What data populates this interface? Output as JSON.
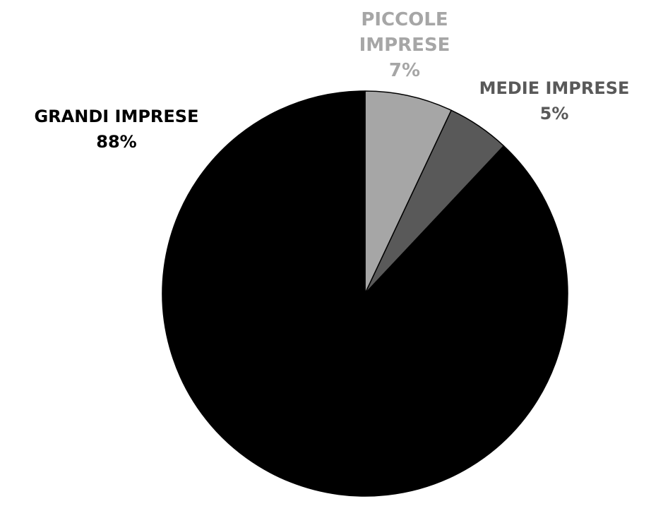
{
  "chart_data": {
    "type": "pie",
    "slices": [
      {
        "name": "PICCOLE IMPRESE",
        "value": 7,
        "label": "7%",
        "color": "#a6a6a6",
        "label_color": "#a6a6a6"
      },
      {
        "name": "MEDIE IMPRESE",
        "value": 5,
        "label": "5%",
        "color": "#595959",
        "label_color": "#595959"
      },
      {
        "name": "GRANDI IMPRESE",
        "value": 88,
        "label": "88%",
        "color": "#000000",
        "label_color": "#000000"
      }
    ],
    "title": "",
    "legend": "none",
    "start_angle": "12 o'clock",
    "direction": "clockwise"
  }
}
